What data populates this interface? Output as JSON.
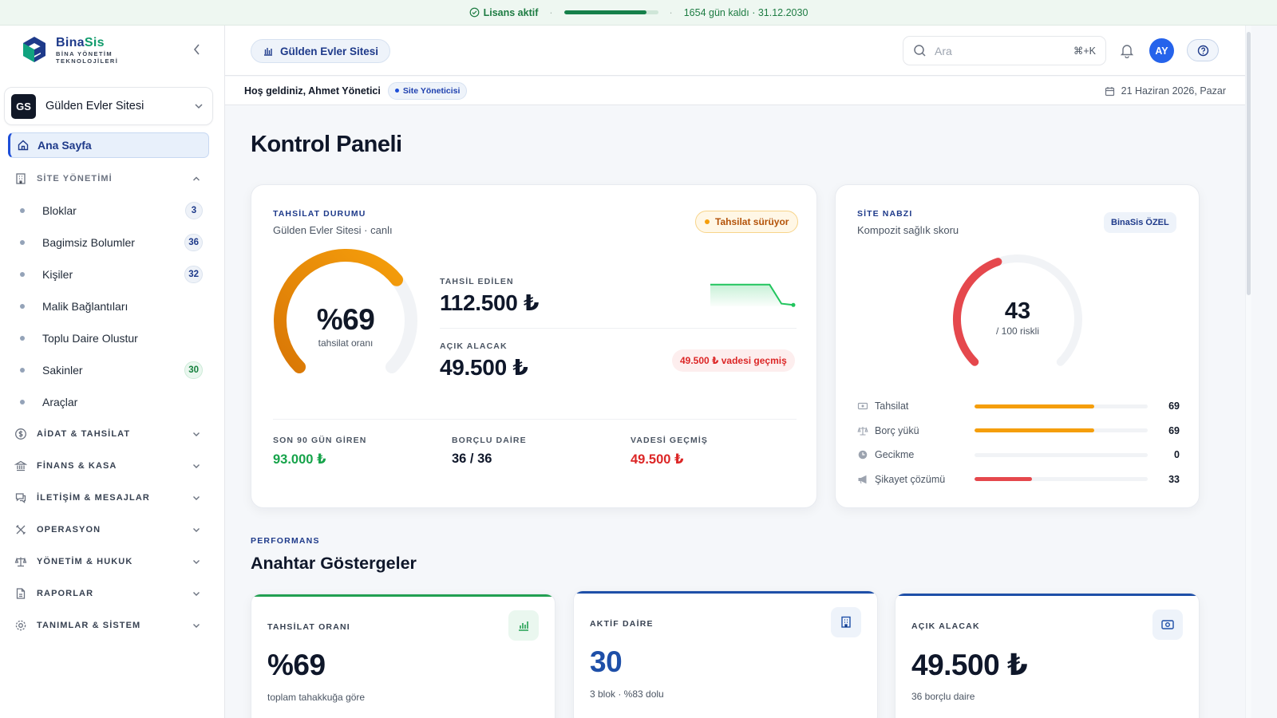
{
  "license": {
    "status": "Lisans aktif",
    "progress": 0.88,
    "remaining": "1654 gün kaldı · 31.12.2030"
  },
  "brand": {
    "name_a": "Bina",
    "name_b": "Sis",
    "tagline_1": "BİNA YÖNETİM",
    "tagline_2": "TEKNOLOJİLERİ"
  },
  "site_selector": {
    "initials": "GS",
    "name": "Gülden Evler Sitesi"
  },
  "sidebar": {
    "home": "Ana Sayfa",
    "site_section": "SİTE YÖNETİMİ",
    "site_items": [
      {
        "label": "Bloklar",
        "badge": "3"
      },
      {
        "label": "Bagimsiz Bolumler",
        "badge": "36"
      },
      {
        "label": "Kişiler",
        "badge": "32"
      },
      {
        "label": "Malik Bağlantıları",
        "badge": ""
      },
      {
        "label": "Toplu Daire Olustur",
        "badge": ""
      },
      {
        "label": "Sakinler",
        "badge": "30"
      },
      {
        "label": "Araçlar",
        "badge": ""
      }
    ],
    "sections": [
      {
        "label": "AİDAT & TAHSİLAT",
        "icon": "dollar-icon"
      },
      {
        "label": "FİNANS & KASA",
        "icon": "bank-icon"
      },
      {
        "label": "İLETİŞİM & MESAJLAR",
        "icon": "chat-icon"
      },
      {
        "label": "OPERASYON",
        "icon": "tools-icon"
      },
      {
        "label": "YÖNETİM & HUKUK",
        "icon": "scale-icon"
      },
      {
        "label": "RAPORLAR",
        "icon": "report-icon"
      },
      {
        "label": "TANIMLAR & SİSTEM",
        "icon": "gear-icon"
      }
    ]
  },
  "topbar": {
    "site_pill": "Gülden Evler Sitesi",
    "search_placeholder": "Ara",
    "search_shortcut": "⌘+K",
    "user_initials": "AY"
  },
  "welcome": {
    "greeting": "Hoş geldiniz, Ahmet Yönetici",
    "role": "Site Yöneticisi",
    "date": "21 Haziran 2026, Pazar"
  },
  "page_title": "Kontrol Paneli",
  "collection": {
    "label": "TAHSİLAT DURUMU",
    "subtitle": "Gülden Evler Sitesi · canlı",
    "status_pill": "Tahsilat sürüyor",
    "rate_text": "%69",
    "rate_value": 69,
    "rate_caption": "tahsilat oranı",
    "collected_label": "TAHSİL EDİLEN",
    "collected_value": "112.500 ₺",
    "open_label": "AÇIK ALACAK",
    "open_value": "49.500 ₺",
    "overdue_pill": "49.500 ₺ vadesi geçmiş",
    "sparkline": [
      0.8,
      0.8,
      0.8,
      0.8,
      0.8,
      0.8,
      0.1,
      0.05
    ],
    "stats": [
      {
        "label": "SON 90 GÜN GİREN",
        "value": "93.000 ₺",
        "color": "#16a34a"
      },
      {
        "label": "BORÇLU DAİRE",
        "value": "36 / 36",
        "color": "#0f172a"
      },
      {
        "label": "VADESİ GEÇMİŞ",
        "value": "49.500 ₺",
        "color": "#dc2626"
      }
    ]
  },
  "pulse": {
    "label": "SİTE NABZI",
    "subtitle": "Kompozit sağlık skoru",
    "badge": "BinaSis ÖZEL",
    "score": "43",
    "score_value": 43,
    "score_caption": "/ 100 riskli",
    "metrics": [
      {
        "label": "Tahsilat",
        "value": "69",
        "pct": 69,
        "color": "#f59e0b",
        "icon": "money-icon"
      },
      {
        "label": "Borç yükü",
        "value": "69",
        "pct": 69,
        "color": "#f59e0b",
        "icon": "scale-icon"
      },
      {
        "label": "Gecikme",
        "value": "0",
        "pct": 0,
        "color": "#f59e0b",
        "icon": "clock-icon"
      },
      {
        "label": "Şikayet çözümü",
        "value": "33",
        "pct": 33,
        "color": "#e5484d",
        "icon": "megaphone-icon"
      }
    ]
  },
  "performance": {
    "kicker": "PERFORMANS",
    "title": "Anahtar Göstergeler",
    "kpis": [
      {
        "label": "TAHSİLAT ORANI",
        "value": "%69",
        "sub": "toplam tahakkuğa göre",
        "accent": "#22a052",
        "value_color": "#0f172a",
        "icon": "bar-chart-icon"
      },
      {
        "label": "AKTİF DAİRE",
        "value": "30",
        "sub": "3 blok · %83 dolu",
        "accent": "#1e4fa8",
        "value_color": "#1e4fa8",
        "icon": "building-icon"
      },
      {
        "label": "AÇIK ALACAK",
        "value": "49.500 ₺",
        "sub": "36 borçlu daire",
        "accent": "#1e4fa8",
        "value_color": "#0f172a",
        "icon": "cash-icon"
      }
    ]
  }
}
